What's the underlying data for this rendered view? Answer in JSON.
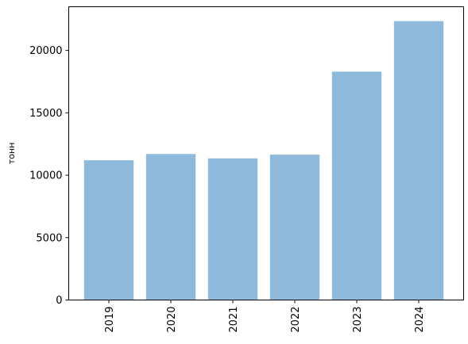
{
  "chart_data": {
    "type": "bar",
    "categories": [
      "2019",
      "2020",
      "2021",
      "2022",
      "2023",
      "2024"
    ],
    "values": [
      11200,
      11700,
      11350,
      11650,
      18300,
      22350
    ],
    "title": "",
    "xlabel": "",
    "ylabel": "тонн",
    "ylim": [
      0,
      23500
    ],
    "yticks": [
      0,
      5000,
      10000,
      15000,
      20000
    ],
    "ytick_labels": [
      "0",
      "5000",
      "10000",
      "15000",
      "20000"
    ],
    "grid": false,
    "bar_color": "#8fbadb",
    "xtick_rotation": "vertical"
  }
}
